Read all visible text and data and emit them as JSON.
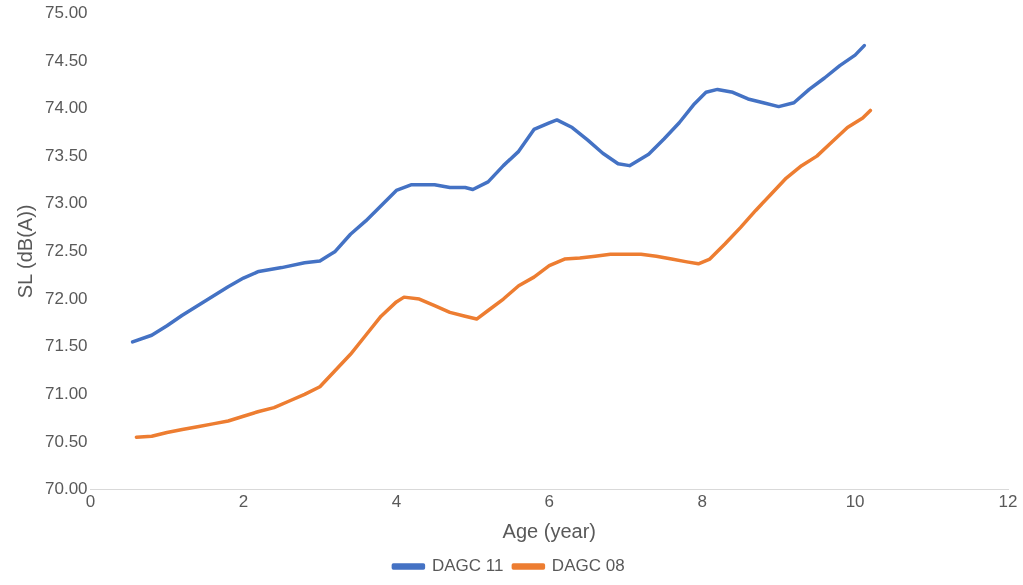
{
  "chart_data": {
    "type": "line",
    "xlabel": "Age (year)",
    "ylabel": "SL (dB(A))",
    "xlim": [
      0,
      12
    ],
    "xticks": [
      0,
      2,
      4,
      6,
      8,
      10,
      12
    ],
    "ylim": [
      70,
      75
    ],
    "yticks": [
      {
        "value": 70,
        "label": "70.00"
      },
      {
        "value": 70.5,
        "label": "70.50"
      },
      {
        "value": 71,
        "label": "71.00"
      },
      {
        "value": 71.5,
        "label": "71.50"
      },
      {
        "value": 72,
        "label": "72.00"
      },
      {
        "value": 72.5,
        "label": "72.50"
      },
      {
        "value": 73,
        "label": "73.00"
      },
      {
        "value": 73.5,
        "label": "73.50"
      },
      {
        "value": 74,
        "label": "74.00"
      },
      {
        "value": 74.5,
        "label": "74.50"
      },
      {
        "value": 75,
        "label": "75.00"
      }
    ],
    "legend": "bottom",
    "marker": "none",
    "line_style": "solid",
    "series": [
      {
        "name": "DAGC 11",
        "color": "#4472c4",
        "x": [
          0.55,
          0.8,
          1.0,
          1.2,
          1.5,
          1.8,
          2.0,
          2.2,
          2.5,
          2.8,
          3.0,
          3.2,
          3.4,
          3.6,
          3.8,
          4.0,
          4.2,
          4.5,
          4.7,
          4.9,
          5.0,
          5.2,
          5.4,
          5.6,
          5.8,
          6.0,
          6.1,
          6.3,
          6.5,
          6.7,
          6.9,
          7.05,
          7.3,
          7.5,
          7.7,
          7.9,
          8.05,
          8.2,
          8.4,
          8.6,
          8.8,
          9.0,
          9.2,
          9.4,
          9.6,
          9.8,
          10.0,
          10.12
        ],
        "values": [
          71.55,
          71.62,
          71.72,
          71.83,
          71.98,
          72.13,
          72.22,
          72.29,
          72.33,
          72.38,
          72.4,
          72.5,
          72.68,
          72.82,
          72.98,
          73.14,
          73.2,
          73.2,
          73.17,
          73.17,
          73.15,
          73.23,
          73.4,
          73.55,
          73.78,
          73.85,
          73.88,
          73.8,
          73.67,
          73.53,
          73.42,
          73.4,
          73.52,
          73.68,
          73.85,
          74.05,
          74.17,
          74.2,
          74.17,
          74.1,
          74.06,
          74.02,
          74.06,
          74.2,
          74.32,
          74.45,
          74.56,
          74.66
        ]
      },
      {
        "name": "DAGC 08",
        "color": "#ed7d31",
        "x": [
          0.6,
          0.8,
          1.0,
          1.2,
          1.4,
          1.6,
          1.8,
          2.0,
          2.2,
          2.4,
          2.6,
          2.8,
          3.0,
          3.2,
          3.4,
          3.6,
          3.8,
          4.0,
          4.1,
          4.3,
          4.5,
          4.7,
          4.9,
          5.05,
          5.2,
          5.4,
          5.6,
          5.8,
          6.0,
          6.2,
          6.4,
          6.6,
          6.8,
          7.0,
          7.2,
          7.4,
          7.6,
          7.8,
          7.95,
          8.1,
          8.3,
          8.5,
          8.7,
          8.9,
          9.1,
          9.3,
          9.5,
          9.7,
          9.9,
          10.1,
          10.2
        ],
        "values": [
          70.55,
          70.56,
          70.6,
          70.63,
          70.66,
          70.69,
          70.72,
          70.77,
          70.82,
          70.86,
          70.93,
          71.0,
          71.08,
          71.25,
          71.42,
          71.62,
          71.82,
          71.97,
          72.02,
          72.0,
          71.93,
          71.86,
          71.82,
          71.79,
          71.88,
          72.0,
          72.14,
          72.23,
          72.35,
          72.42,
          72.43,
          72.45,
          72.47,
          72.47,
          72.47,
          72.45,
          72.42,
          72.39,
          72.37,
          72.42,
          72.58,
          72.75,
          72.93,
          73.1,
          73.27,
          73.4,
          73.5,
          73.65,
          73.8,
          73.9,
          73.98
        ]
      }
    ]
  }
}
